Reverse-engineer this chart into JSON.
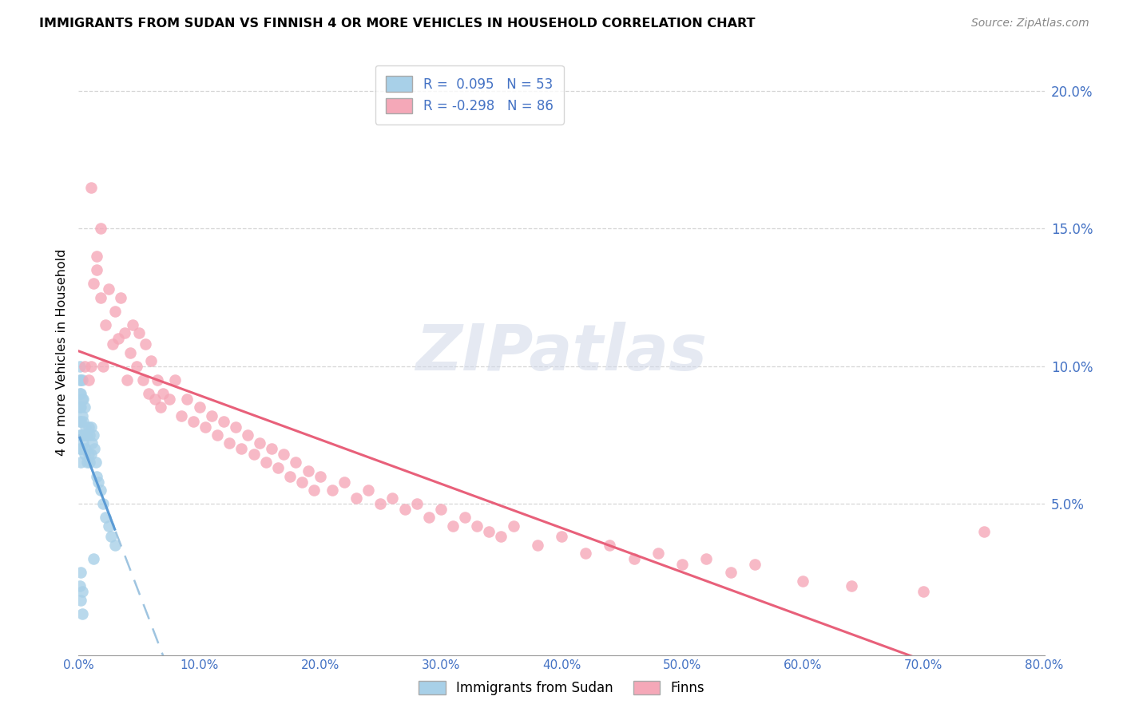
{
  "title": "IMMIGRANTS FROM SUDAN VS FINNISH 4 OR MORE VEHICLES IN HOUSEHOLD CORRELATION CHART",
  "source": "Source: ZipAtlas.com",
  "ylabel": "4 or more Vehicles in Household",
  "legend_label1": "Immigrants from Sudan",
  "legend_label2": "Finns",
  "R1": 0.095,
  "N1": 53,
  "R2": -0.298,
  "N2": 86,
  "xlim": [
    0.0,
    0.8
  ],
  "ylim": [
    -0.005,
    0.215
  ],
  "yticks": [
    0.05,
    0.1,
    0.15,
    0.2
  ],
  "xticks": [
    0.0,
    0.1,
    0.2,
    0.3,
    0.4,
    0.5,
    0.6,
    0.7,
    0.8
  ],
  "color_blue": "#a8d0e8",
  "color_pink": "#f5a8b8",
  "color_line_blue_solid": "#5b9bd5",
  "color_line_blue_dash": "#9ec4e0",
  "color_line_pink": "#e8607a",
  "color_axis_text": "#4472c4",
  "sudan_x": [
    0.001,
    0.001,
    0.001,
    0.001,
    0.001,
    0.001,
    0.001,
    0.002,
    0.002,
    0.002,
    0.002,
    0.002,
    0.002,
    0.002,
    0.003,
    0.003,
    0.003,
    0.003,
    0.003,
    0.004,
    0.004,
    0.004,
    0.005,
    0.005,
    0.005,
    0.006,
    0.006,
    0.007,
    0.007,
    0.008,
    0.008,
    0.009,
    0.009,
    0.01,
    0.01,
    0.011,
    0.012,
    0.013,
    0.014,
    0.015,
    0.016,
    0.018,
    0.02,
    0.022,
    0.025,
    0.027,
    0.03,
    0.001,
    0.002,
    0.003,
    0.002,
    0.003,
    0.012
  ],
  "sudan_y": [
    0.07,
    0.075,
    0.08,
    0.085,
    0.09,
    0.095,
    0.1,
    0.065,
    0.07,
    0.075,
    0.08,
    0.085,
    0.09,
    0.095,
    0.07,
    0.075,
    0.082,
    0.088,
    0.095,
    0.072,
    0.08,
    0.088,
    0.068,
    0.075,
    0.085,
    0.07,
    0.078,
    0.065,
    0.075,
    0.068,
    0.078,
    0.065,
    0.075,
    0.068,
    0.078,
    0.072,
    0.075,
    0.07,
    0.065,
    0.06,
    0.058,
    0.055,
    0.05,
    0.045,
    0.042,
    0.038,
    0.035,
    0.02,
    0.015,
    0.01,
    0.025,
    0.018,
    0.03
  ],
  "finns_x": [
    0.005,
    0.008,
    0.01,
    0.012,
    0.015,
    0.018,
    0.02,
    0.022,
    0.025,
    0.028,
    0.03,
    0.033,
    0.035,
    0.038,
    0.04,
    0.043,
    0.045,
    0.048,
    0.05,
    0.053,
    0.055,
    0.058,
    0.06,
    0.063,
    0.065,
    0.068,
    0.07,
    0.075,
    0.08,
    0.085,
    0.09,
    0.095,
    0.1,
    0.105,
    0.11,
    0.115,
    0.12,
    0.125,
    0.13,
    0.135,
    0.14,
    0.145,
    0.15,
    0.155,
    0.16,
    0.165,
    0.17,
    0.175,
    0.18,
    0.185,
    0.19,
    0.195,
    0.2,
    0.21,
    0.22,
    0.23,
    0.24,
    0.25,
    0.26,
    0.27,
    0.28,
    0.29,
    0.3,
    0.31,
    0.32,
    0.33,
    0.34,
    0.35,
    0.36,
    0.38,
    0.4,
    0.42,
    0.44,
    0.46,
    0.48,
    0.5,
    0.52,
    0.54,
    0.56,
    0.6,
    0.64,
    0.7,
    0.75,
    0.01,
    0.015,
    0.018
  ],
  "finns_y": [
    0.1,
    0.095,
    0.1,
    0.13,
    0.135,
    0.125,
    0.1,
    0.115,
    0.128,
    0.108,
    0.12,
    0.11,
    0.125,
    0.112,
    0.095,
    0.105,
    0.115,
    0.1,
    0.112,
    0.095,
    0.108,
    0.09,
    0.102,
    0.088,
    0.095,
    0.085,
    0.09,
    0.088,
    0.095,
    0.082,
    0.088,
    0.08,
    0.085,
    0.078,
    0.082,
    0.075,
    0.08,
    0.072,
    0.078,
    0.07,
    0.075,
    0.068,
    0.072,
    0.065,
    0.07,
    0.063,
    0.068,
    0.06,
    0.065,
    0.058,
    0.062,
    0.055,
    0.06,
    0.055,
    0.058,
    0.052,
    0.055,
    0.05,
    0.052,
    0.048,
    0.05,
    0.045,
    0.048,
    0.042,
    0.045,
    0.042,
    0.04,
    0.038,
    0.042,
    0.035,
    0.038,
    0.032,
    0.035,
    0.03,
    0.032,
    0.028,
    0.03,
    0.025,
    0.028,
    0.022,
    0.02,
    0.018,
    0.04,
    0.165,
    0.14,
    0.15
  ]
}
